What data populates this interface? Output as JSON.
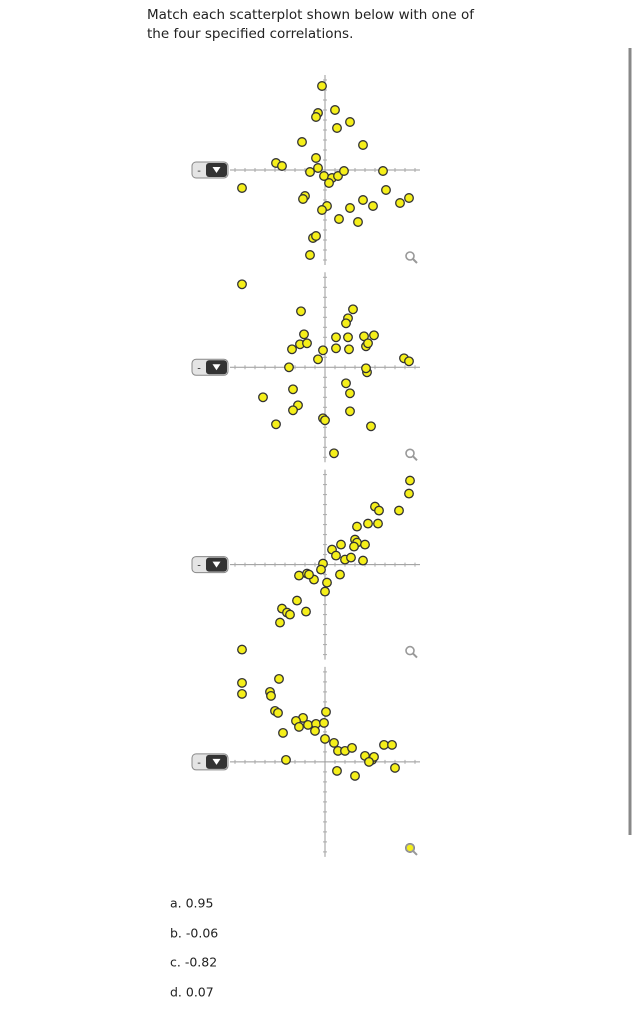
{
  "prompt": [
    "Match each scatterplot shown below with one of",
    "the four specified correlations."
  ],
  "dropdowns": [
    "-",
    "-",
    "-",
    "-"
  ],
  "chart_data": [
    {
      "type": "scatter",
      "color": "#f5ef1a",
      "xlim": [
        -9.5,
        9.5
      ],
      "ylim": [
        -9.5,
        9.5
      ],
      "x": [
        -0.3,
        1.0,
        -0.7,
        -0.9,
        2.5,
        1.2,
        3.8,
        -2.3,
        -0.9,
        -4.9,
        -4.3,
        -1.5,
        -0.7,
        -0.1,
        0.7,
        0.4,
        1.3,
        1.9,
        5.8,
        -8.3,
        6.1,
        -2.0,
        -2.2,
        8.4,
        7.5,
        3.8,
        4.8,
        2.5,
        0.2,
        -0.3,
        1.4,
        3.3,
        -1.2,
        -0.9,
        -1.5
      ],
      "values": [
        8.4,
        6.0,
        5.7,
        5.3,
        4.8,
        4.2,
        2.5,
        2.8,
        1.2,
        0.7,
        0.4,
        -0.2,
        0.2,
        -0.6,
        -0.8,
        -1.3,
        -0.6,
        -0.1,
        -0.1,
        -1.8,
        -2.0,
        -2.6,
        -2.9,
        -2.8,
        -3.3,
        -3.0,
        -3.6,
        -3.8,
        -3.6,
        -4.0,
        -4.9,
        -5.2,
        -6.8,
        -6.6,
        -8.5
      ]
    },
    {
      "type": "scatter",
      "color": "#f5ef1a",
      "xlim": [
        -9.5,
        9.5
      ],
      "ylim": [
        -9.5,
        9.5
      ],
      "x": [
        -8.3,
        -2.4,
        2.8,
        2.3,
        2.1,
        -2.1,
        1.1,
        2.3,
        3.9,
        4.9,
        -2.5,
        -1.8,
        -3.3,
        -0.2,
        1.1,
        2.4,
        4.1,
        4.3,
        -0.7,
        -3.6,
        7.9,
        8.4,
        2.1,
        -3.2,
        -6.2,
        2.5,
        -2.7,
        -3.2,
        -0.2,
        0.0,
        2.5,
        -4.9,
        4.6,
        0.9,
        4.2,
        4.1
      ],
      "values": [
        8.3,
        5.6,
        5.8,
        4.9,
        4.4,
        3.3,
        3.0,
        3.0,
        3.1,
        3.2,
        2.3,
        2.4,
        1.8,
        1.7,
        1.9,
        1.8,
        2.1,
        2.4,
        0.8,
        0.0,
        0.9,
        0.6,
        -1.6,
        -2.2,
        -3.0,
        -2.6,
        -3.8,
        -4.3,
        -5.1,
        -5.3,
        -4.4,
        -5.7,
        -5.9,
        -8.6,
        -0.5,
        -0.1
      ]
    },
    {
      "type": "scatter",
      "color": "#f5ef1a",
      "xlim": [
        -9.5,
        9.5
      ],
      "ylim": [
        -9.5,
        9.5
      ],
      "x": [
        8.5,
        8.4,
        5.0,
        5.4,
        7.4,
        4.3,
        5.3,
        3.2,
        3.0,
        1.6,
        3.2,
        2.9,
        4.0,
        0.7,
        1.1,
        2.0,
        2.6,
        3.8,
        -0.2,
        1.5,
        -0.4,
        -2.6,
        -1.8,
        -1.1,
        -1.6,
        0.2,
        0.0,
        -2.8,
        -4.3,
        -3.8,
        -1.9,
        -3.5,
        -4.5,
        -8.3
      ],
      "values": [
        8.4,
        7.1,
        5.8,
        5.4,
        5.4,
        4.1,
        4.1,
        3.8,
        2.5,
        2.0,
        2.2,
        1.8,
        2.0,
        1.5,
        0.9,
        0.5,
        0.7,
        0.4,
        0.1,
        -1.0,
        -0.5,
        -1.1,
        -0.9,
        -1.5,
        -1.0,
        -1.8,
        -2.7,
        -3.6,
        -4.4,
        -4.8,
        -4.7,
        -5.0,
        -5.8,
        -8.5
      ]
    },
    {
      "type": "scatter",
      "color": "#f5ef1a",
      "xlim": [
        -9.5,
        9.5
      ],
      "ylim": [
        -9.5,
        9.5
      ],
      "x": [
        -8.3,
        -8.3,
        -4.6,
        -5.5,
        -5.4,
        -5.0,
        -4.7,
        -2.2,
        -2.9,
        0.1,
        -2.6,
        -1.7,
        -0.9,
        -0.1,
        -1.0,
        -4.2,
        0.0,
        0.9,
        1.3,
        2.0,
        2.7,
        4.0,
        4.7,
        4.9,
        4.4,
        5.9,
        6.7,
        -3.9,
        1.2,
        3.0,
        7.0,
        8.5
      ],
      "values": [
        7.9,
        6.8,
        8.3,
        7.0,
        6.6,
        5.1,
        4.9,
        4.4,
        4.1,
        5.0,
        3.5,
        3.7,
        3.8,
        3.9,
        3.1,
        2.9,
        2.3,
        1.9,
        1.1,
        1.1,
        1.4,
        0.6,
        0.2,
        0.5,
        0.0,
        1.7,
        1.7,
        0.2,
        -0.9,
        -1.4,
        -0.6,
        -8.6
      ]
    }
  ],
  "options": [
    "a. 0.95",
    "b. -0.06",
    "c. -0.82",
    "d. 0.07"
  ]
}
